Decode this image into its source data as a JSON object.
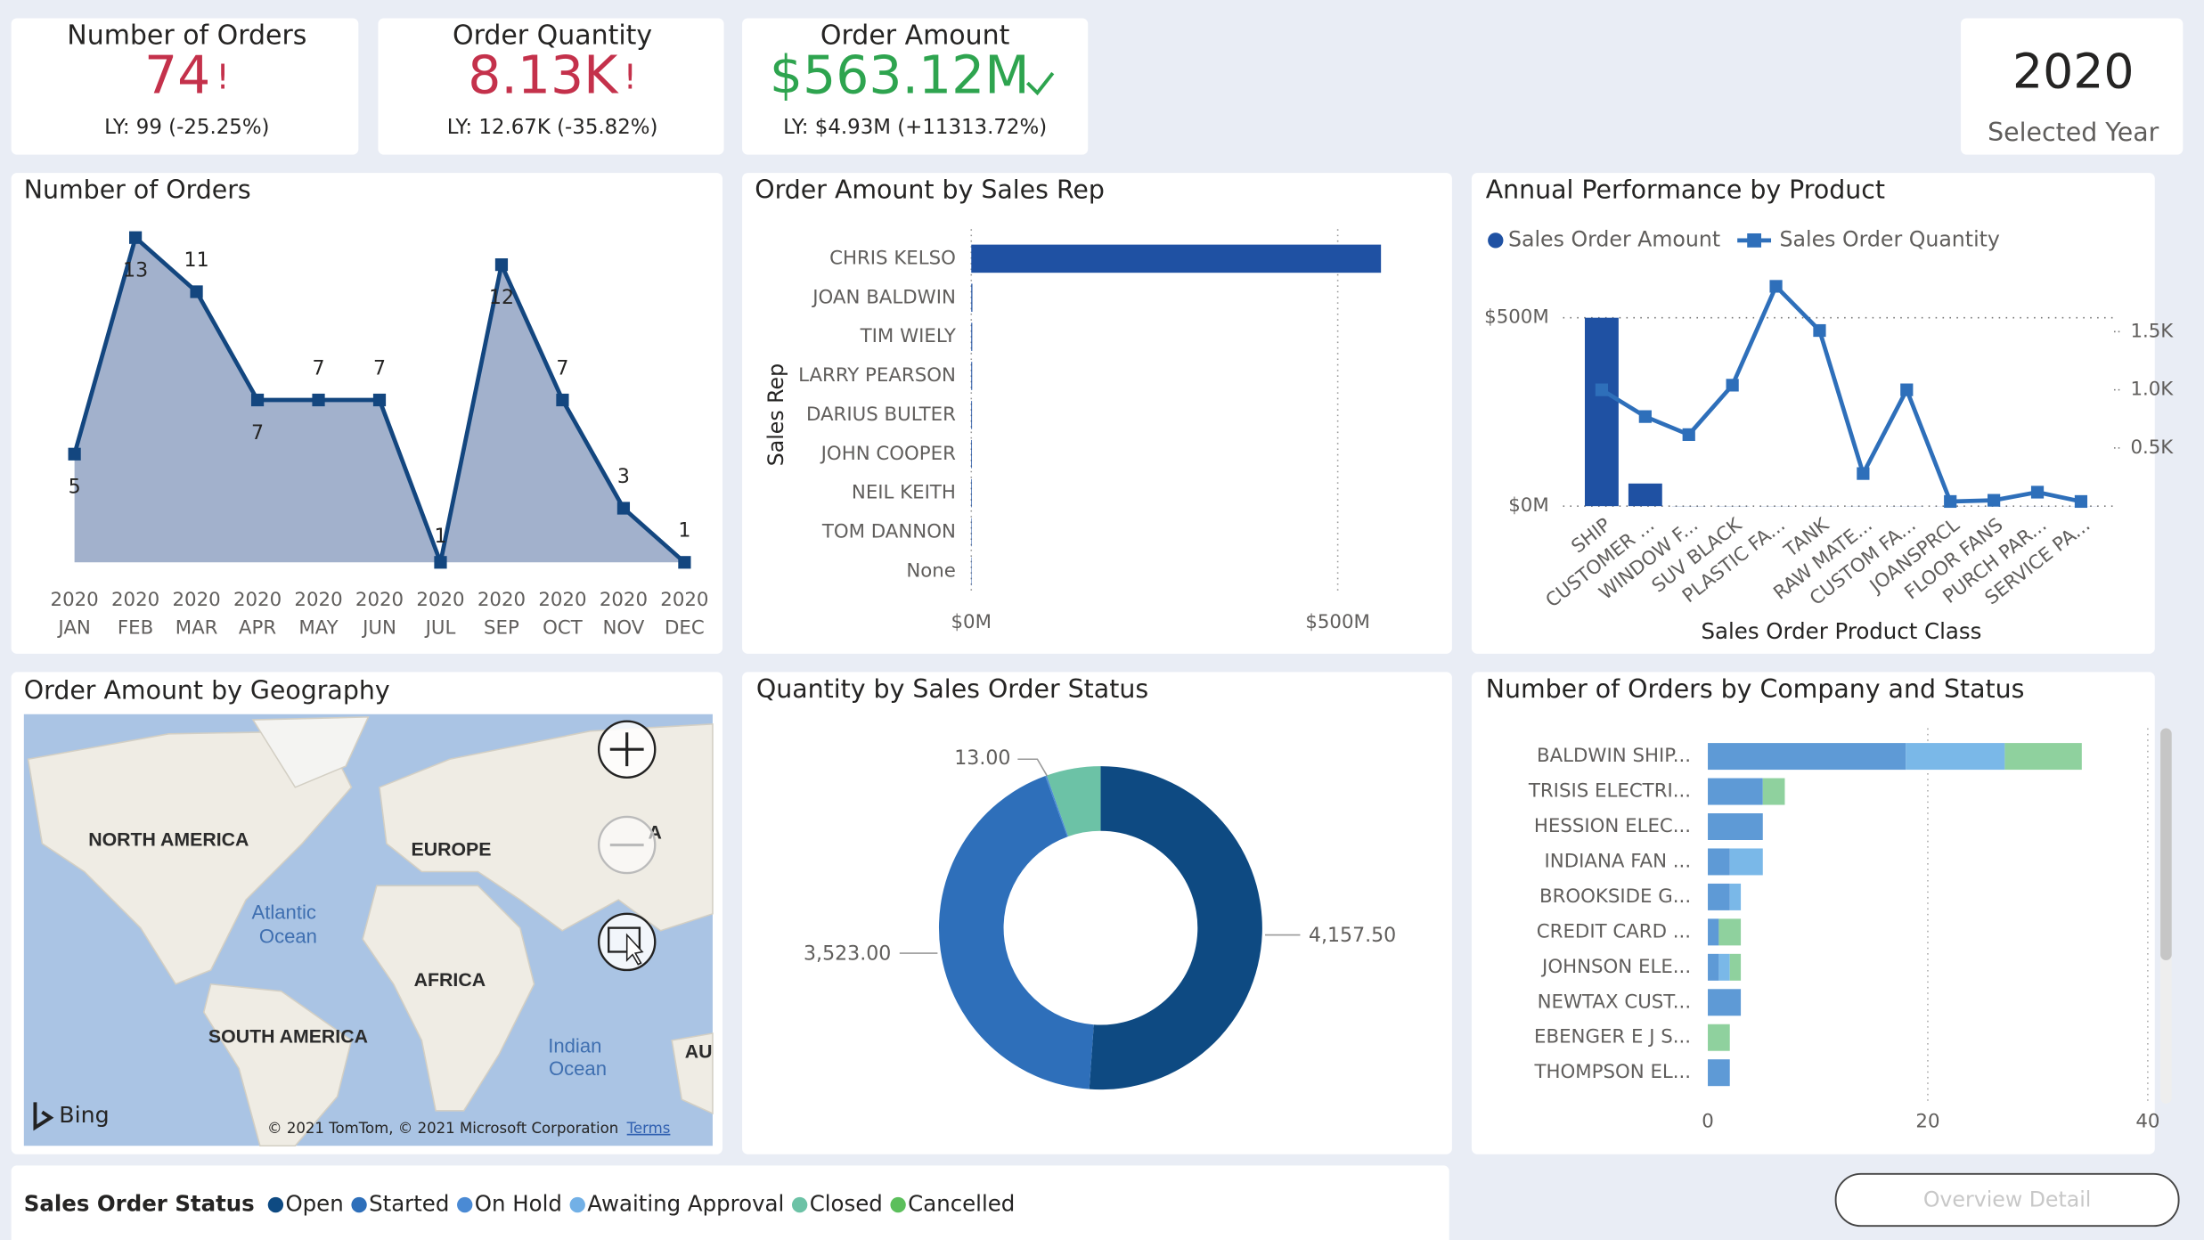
{
  "cards": [
    {
      "title": "Number of Orders",
      "value": "74",
      "flag": "!",
      "ly": "LY: 99 (-25.25%)",
      "color": "#c4314b"
    },
    {
      "title": "Order Quantity",
      "value": "8.13K",
      "flag": "!",
      "ly": "LY: 12.67K (-35.82%)",
      "color": "#c4314b"
    },
    {
      "title": "Order Amount",
      "value": "$563.12M",
      "ly": "LY: $4.93M (+11313.72%)",
      "color": "#2ea44f"
    }
  ],
  "year_card": {
    "value": "2020",
    "label": "Selected Year"
  },
  "map": {
    "title": "Order Amount by Geography",
    "labels": [
      "NORTH AMERICA",
      "EUROPE",
      "AFRICA",
      "SOUTH AMERICA",
      "AU",
      "A"
    ],
    "oceans": [
      [
        "Atlantic",
        "Ocean"
      ],
      [
        "Indian",
        "Ocean"
      ]
    ],
    "brand": "Bing",
    "attribution": "© 2021 TomTom, © 2021 Microsoft Corporation",
    "terms": "Terms"
  },
  "legend": {
    "title": "Sales Order Status",
    "items": [
      {
        "name": "Open",
        "color": "#0e4a82"
      },
      {
        "name": "Started",
        "color": "#2e6fba"
      },
      {
        "name": "On Hold",
        "color": "#4a8ad4"
      },
      {
        "name": "Awaiting Approval",
        "color": "#72b0e6"
      },
      {
        "name": "Closed",
        "color": "#6cc2a6"
      },
      {
        "name": "Cancelled",
        "color": "#5cbf5c"
      }
    ]
  },
  "button": "Overview Detail",
  "chart_data": [
    {
      "type": "area",
      "title": "Number of Orders",
      "categories": [
        [
          "2020",
          "JAN"
        ],
        [
          "2020",
          "FEB"
        ],
        [
          "2020",
          "MAR"
        ],
        [
          "2020",
          "APR"
        ],
        [
          "2020",
          "MAY"
        ],
        [
          "2020",
          "JUN"
        ],
        [
          "2020",
          "JUL"
        ],
        [
          "2020",
          "SEP"
        ],
        [
          "2020",
          "OCT"
        ],
        [
          "2020",
          "NOV"
        ],
        [
          "2020",
          "DEC"
        ]
      ],
      "values": [
        5,
        13,
        11,
        7,
        7,
        7,
        1,
        12,
        7,
        3,
        1
      ],
      "ylim": [
        1,
        13
      ],
      "color": "#13467f",
      "fill": "#a2b1cc"
    },
    {
      "type": "hbar",
      "title": "Order Amount by Sales Rep",
      "ylabel": "Sales Rep",
      "categories": [
        "CHRIS KELSO",
        "JOAN BALDWIN",
        "TIM WIELY",
        "LARRY PEARSON",
        "DARIUS BULTER",
        "JOHN COOPER",
        "NEIL KEITH",
        "TOM DANNON",
        "None"
      ],
      "values": [
        559,
        1.5,
        1.3,
        1.2,
        1,
        0.9,
        0.8,
        0.6,
        0.5
      ],
      "xlim": [
        0,
        560
      ],
      "xticks": [
        {
          "value": 0,
          "label": "$0M"
        },
        {
          "value": 500,
          "label": "$500M"
        }
      ],
      "color": "#1f51a3",
      "grid": true
    },
    {
      "type": "combo",
      "title": "Annual Performance by Product",
      "xlabel": "Sales Order Product Class",
      "categories": [
        "SHIP",
        "CUSTOMER ...",
        "WINDOW F...",
        "SUV BLACK",
        "PLASTIC FA...",
        "TANK",
        "RAW MATE...",
        "CUSTOM FA...",
        "JOANSPRCL",
        "FLOOR FANS",
        "PURCH PAR...",
        "SERVICE PA..."
      ],
      "series": [
        {
          "name": "Sales Order Amount",
          "type": "bar",
          "color": "#1f51a3",
          "values": [
            500,
            60,
            0.4,
            0.4,
            0.3,
            0.3,
            0.3,
            0.3,
            0.2,
            0.2,
            0.2,
            0.2
          ]
        },
        {
          "name": "Sales Order Quantity",
          "type": "line",
          "axis": "y2",
          "color": "#2e6fba",
          "values": [
            1000,
            770,
            615,
            1040,
            1890,
            1510,
            280,
            1000,
            40,
            50,
            120,
            40
          ]
        }
      ],
      "ylim": [
        0,
        500
      ],
      "yticks": [
        {
          "value": 0,
          "label": "$0M"
        },
        {
          "value": 500,
          "label": "$500M"
        }
      ],
      "y2lim": [
        0,
        1620
      ],
      "y2ticks": [
        {
          "value": 500,
          "label": "0.5K"
        },
        {
          "value": 1000,
          "label": "1.0K"
        },
        {
          "value": 1500,
          "label": "1.5K"
        }
      ],
      "grid": true
    },
    {
      "type": "donut",
      "title": "Quantity by Sales Order Status",
      "values": [
        4157.5,
        3523,
        13,
        440
      ],
      "value_labels": [
        "4,157.50",
        "3,523.00",
        "13.00",
        null
      ],
      "colors": [
        "#0e4a82",
        "#2e6fba",
        "#4a8ad4",
        "#6cc2a6"
      ]
    },
    {
      "type": "stacked_hbar",
      "title": "Number of Orders by Company and Status",
      "categories": [
        "BALDWIN SHIP...",
        "TRISIS ELECTRI...",
        "HESSION ELEC...",
        "INDIANA FAN ...",
        "BROOKSIDE G...",
        "CREDIT CARD ...",
        "JOHNSON ELE...",
        "NEWTAX CUST...",
        "EBENGER E J S...",
        "THOMPSON EL..."
      ],
      "series": [
        {
          "color": "#5e9ad6",
          "values": [
            18,
            5,
            5,
            2,
            2,
            1,
            1,
            3,
            0,
            2
          ]
        },
        {
          "color": "#7ab8e8",
          "values": [
            9,
            0,
            0,
            3,
            1,
            0,
            1,
            0,
            0,
            0
          ]
        },
        {
          "color": "#8fd19e",
          "values": [
            7,
            2,
            0,
            0,
            0,
            2,
            1,
            0,
            2,
            0
          ]
        }
      ],
      "xlim": [
        0,
        40
      ],
      "xticks": [
        0,
        20,
        40
      ],
      "grid": true
    }
  ]
}
